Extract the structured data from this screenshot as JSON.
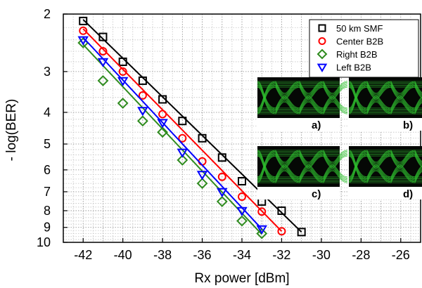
{
  "chart_data": {
    "type": "line",
    "xlabel": "Rx power [dBm]",
    "ylabel": "- log(BER)",
    "xlim": [
      -43,
      -25
    ],
    "ylim": [
      2,
      10
    ],
    "y_scale": "log",
    "x_ticks": [
      "-42",
      "-40",
      "-38",
      "-36",
      "-34",
      "-32",
      "-30",
      "-28",
      "-26"
    ],
    "y_ticks": [
      "2",
      "3",
      "4",
      "5",
      "6",
      "7",
      "8",
      "9",
      "10"
    ],
    "grid": true,
    "legend_position": "top-right",
    "series": [
      {
        "name": "50 km SMF",
        "color": "#000000",
        "marker": "square",
        "x": [
          -42,
          -41,
          -40,
          -39,
          -38,
          -37,
          -36,
          -35,
          -34,
          -33,
          -32,
          -31
        ],
        "y": [
          2.1,
          2.35,
          2.8,
          3.2,
          3.65,
          4.25,
          4.8,
          5.5,
          6.5,
          7.5,
          8.0,
          9.3
        ],
        "fit": [
          [
            -42,
            2.08
          ],
          [
            -31,
            9.3
          ]
        ]
      },
      {
        "name": "Center B2B",
        "color": "#ff0000",
        "marker": "circle",
        "x": [
          -42,
          -41,
          -40,
          -39,
          -38,
          -37,
          -36,
          -35,
          -34,
          -33,
          -32
        ],
        "y": [
          2.25,
          2.6,
          3.0,
          3.55,
          4.05,
          4.8,
          5.65,
          6.3,
          7.25,
          8.05,
          9.25
        ],
        "fit": [
          [
            -42,
            2.22
          ],
          [
            -32,
            9.25
          ]
        ]
      },
      {
        "name": "Right B2B",
        "color": "#2e8b1e",
        "marker": "diamond",
        "x": [
          -42,
          -41,
          -40,
          -39,
          -38,
          -37,
          -36,
          -35,
          -34,
          -33
        ],
        "y": [
          2.45,
          3.2,
          3.75,
          4.25,
          4.6,
          5.6,
          6.6,
          7.5,
          8.6,
          9.4
        ],
        "fit": [
          [
            -42,
            2.48
          ],
          [
            -33,
            9.45
          ]
        ]
      },
      {
        "name": "Left B2B",
        "color": "#0000ff",
        "marker": "triangle-down",
        "x": [
          -42,
          -41,
          -40,
          -39,
          -38,
          -37,
          -36,
          -35,
          -34,
          -33
        ],
        "y": [
          2.4,
          2.8,
          3.2,
          3.95,
          4.3,
          5.3,
          6.2,
          7.0,
          8.0,
          9.1
        ],
        "fit": [
          [
            -42,
            2.36
          ],
          [
            -33,
            9.1
          ]
        ]
      }
    ],
    "inset_labels": [
      "a)",
      "b)",
      "c)",
      "d)"
    ]
  }
}
